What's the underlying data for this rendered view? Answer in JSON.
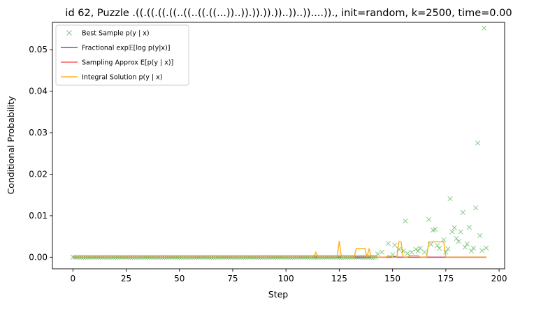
{
  "chart_data": {
    "type": "line",
    "title": "id 62, Puzzle .((.((.((.((..((..((.((...))..)).)).)).))..))..))....))., init=random, k=2500, time=0.00",
    "xlabel": "Step",
    "ylabel": "Conditional Probability",
    "xlim": [
      -9.6,
      202.6
    ],
    "ylim": [
      -0.0028,
      0.0566
    ],
    "xticks": [
      0,
      25,
      50,
      75,
      100,
      125,
      150,
      175,
      200
    ],
    "yticks": [
      0.0,
      0.01,
      0.02,
      0.03,
      0.04,
      0.05
    ],
    "ytick_labels": [
      "0.00",
      "0.01",
      "0.02",
      "0.03",
      "0.04",
      "0.05"
    ],
    "legend": {
      "position": "top-left",
      "entries": [
        {
          "label": "Best Sample p(y | x)",
          "color": "#2ca02c",
          "marker": "x"
        },
        {
          "label": "Fractional exp𝔼[log p(y|x)]",
          "color": "#3f3fbf",
          "marker": "line"
        },
        {
          "label": "Sampling Approx E[p(y | x)]",
          "color": "#ff4040",
          "marker": "line"
        },
        {
          "label": "Integral Solution p(y | x)",
          "color": "#ffa500",
          "marker": "line"
        }
      ]
    },
    "series": [
      {
        "name": "Best Sample p(y | x)",
        "style": "scatter",
        "color": "#2ca02c",
        "points": [
          [
            143,
            0.0008
          ],
          [
            145,
            0.0012
          ],
          [
            148,
            0.0033
          ],
          [
            150,
            0.0006
          ],
          [
            151,
            0.0029
          ],
          [
            153,
            0.0019
          ],
          [
            155,
            0.0015
          ],
          [
            156,
            0.0087
          ],
          [
            157,
            0.0009
          ],
          [
            159,
            0.0012
          ],
          [
            161,
            0.0019
          ],
          [
            162,
            0.0015
          ],
          [
            163,
            0.0022
          ],
          [
            165,
            0.0012
          ],
          [
            167,
            0.0091
          ],
          [
            168,
            0.0031
          ],
          [
            169,
            0.0065
          ],
          [
            170,
            0.0067
          ],
          [
            171,
            0.0028
          ],
          [
            172,
            0.0021
          ],
          [
            174,
            0.0042
          ],
          [
            175,
            0.0012
          ],
          [
            176,
            0.002
          ],
          [
            177,
            0.0141
          ],
          [
            178,
            0.0061
          ],
          [
            179,
            0.0071
          ],
          [
            180,
            0.0045
          ],
          [
            181,
            0.0038
          ],
          [
            182,
            0.0061
          ],
          [
            183,
            0.0108
          ],
          [
            184,
            0.0024
          ],
          [
            185,
            0.0032
          ],
          [
            186,
            0.0072
          ],
          [
            187,
            0.0015
          ],
          [
            188,
            0.0022
          ],
          [
            189,
            0.0119
          ],
          [
            190,
            0.0275
          ],
          [
            191,
            0.0052
          ],
          [
            192,
            0.0016
          ],
          [
            193,
            0.0552
          ],
          [
            194,
            0.0022
          ]
        ]
      },
      {
        "name": "Fractional exp𝔼[log p(y|x)]",
        "style": "line",
        "color": "#3f3fbf",
        "points": [
          [
            0,
            0.0
          ],
          [
            150,
            0.0
          ],
          [
            151,
            0.0002
          ],
          [
            152,
            0.0
          ],
          [
            194,
            0.0
          ]
        ]
      },
      {
        "name": "Sampling Approx E[p(y | x)]",
        "style": "line",
        "color": "#ff4040",
        "points": [
          [
            0,
            0.0
          ],
          [
            194,
            0.0
          ]
        ]
      },
      {
        "name": "Integral Solution p(y | x)",
        "style": "line",
        "color": "#ffa500",
        "points": [
          [
            0,
            0.0
          ],
          [
            113,
            0.0
          ],
          [
            114,
            0.0012
          ],
          [
            115,
            0.0
          ],
          [
            124,
            0.0
          ],
          [
            125,
            0.0039
          ],
          [
            126,
            0.0
          ],
          [
            132,
            0.0
          ],
          [
            133,
            0.0021
          ],
          [
            137,
            0.0021
          ],
          [
            138,
            0.0
          ],
          [
            139,
            0.0021
          ],
          [
            140,
            0.0
          ],
          [
            147,
            0.0
          ],
          [
            148,
            0.0004
          ],
          [
            150,
            0.0
          ],
          [
            152,
            0.0
          ],
          [
            153,
            0.0037
          ],
          [
            154,
            0.0037
          ],
          [
            155,
            0.0
          ],
          [
            157,
            0.0
          ],
          [
            158,
            0.0004
          ],
          [
            162,
            0.0004
          ],
          [
            163,
            0.0
          ],
          [
            166,
            0.0
          ],
          [
            167,
            0.0037
          ],
          [
            174,
            0.0037
          ],
          [
            175,
            0.0
          ],
          [
            194,
            0.0
          ]
        ]
      }
    ],
    "baseline_markers": {
      "name": "Best Sample p(y | x)",
      "x_start": 0,
      "x_end": 142,
      "value": 0.0
    }
  }
}
